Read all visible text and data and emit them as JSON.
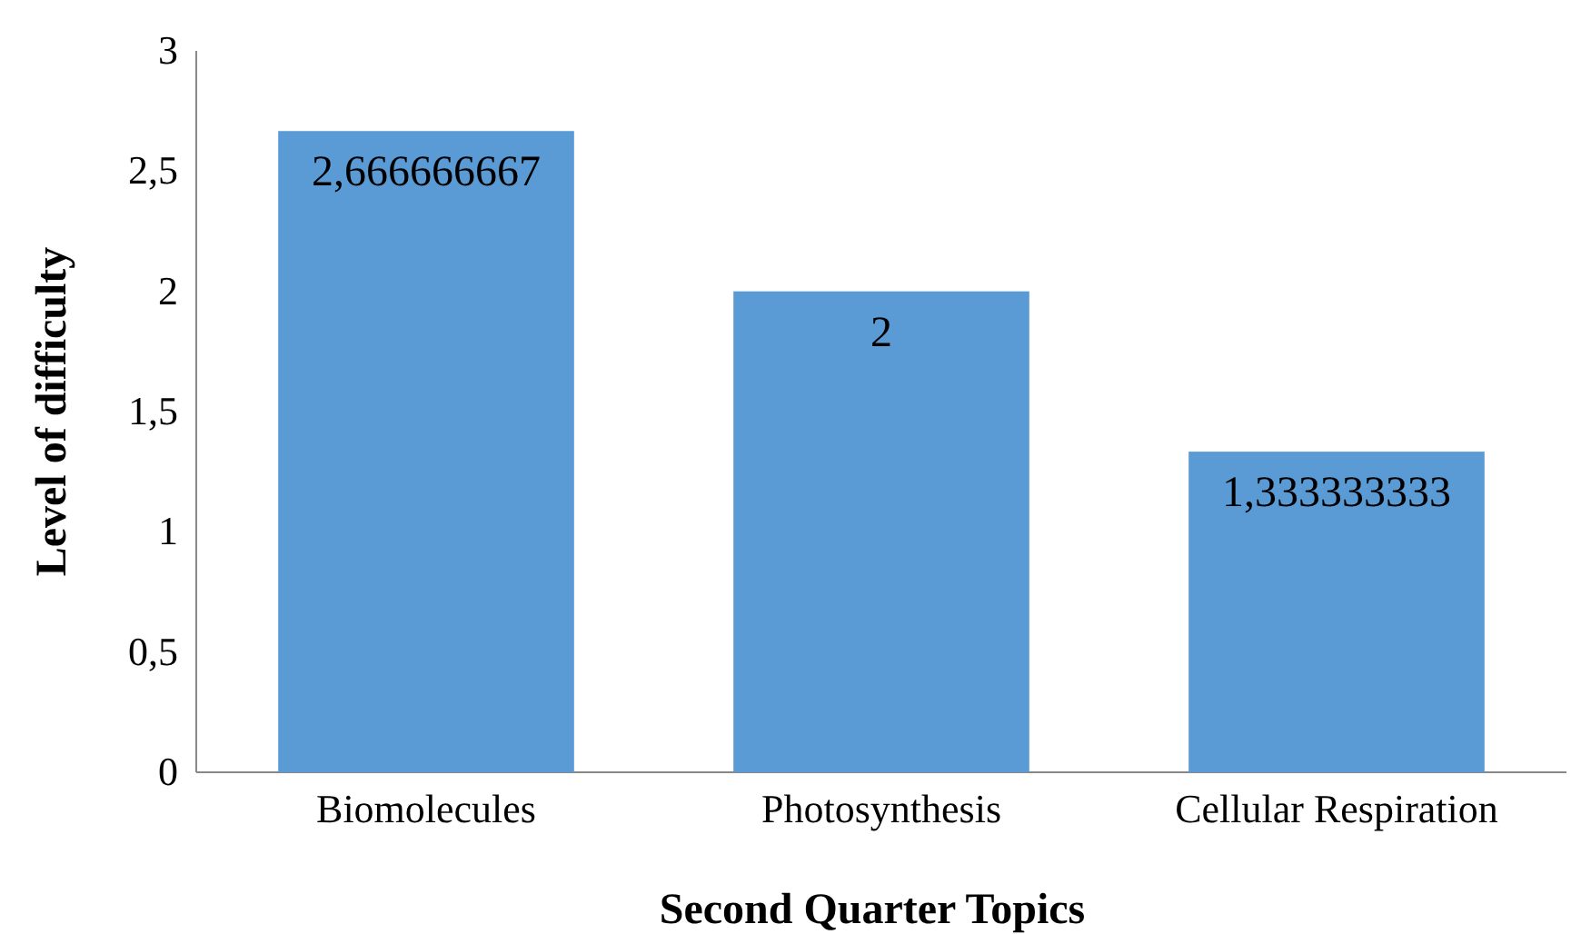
{
  "chart_data": {
    "type": "bar",
    "xlabel": "Second Quarter Topics",
    "ylabel": "Level of difficulty",
    "categories": [
      "Biomolecules",
      "Photosynthesis",
      "Cellular Respiration"
    ],
    "values": [
      2.666666667,
      2,
      1.333333333
    ],
    "value_labels": [
      "2,666666667",
      "2",
      "1,333333333"
    ],
    "color": "#5b9bd5",
    "ylim": [
      0,
      3
    ],
    "yticks": [
      0,
      {
        "value": 0.5,
        "label": "0,5"
      },
      1,
      {
        "value": 1.5,
        "label": "1,5"
      },
      2,
      {
        "value": 2.5,
        "label": "2,5"
      },
      3
    ]
  }
}
